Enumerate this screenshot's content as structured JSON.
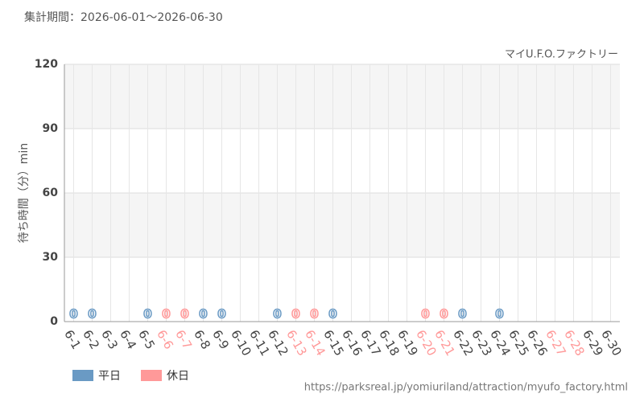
{
  "chart_data": {
    "type": "bar",
    "title": "集計期間：2026-06-01～2026-06-30",
    "subtitle": "マイU.F.O.ファクトリー",
    "y_label": "待ち時間（分）min",
    "source": "https://parksreal.jp/yomiuriland/attraction/myufo_factory.html",
    "categories": [
      "6-1",
      "6-2",
      "6-3",
      "6-4",
      "6-5",
      "6-6",
      "6-7",
      "6-8",
      "6-9",
      "6-10",
      "6-11",
      "6-12",
      "6-13",
      "6-14",
      "6-15",
      "6-16",
      "6-17",
      "6-18",
      "6-19",
      "6-20",
      "6-21",
      "6-22",
      "6-23",
      "6-24",
      "6-25",
      "6-26",
      "6-27",
      "6-28",
      "6-29",
      "6-30"
    ],
    "holidays": [
      false,
      false,
      false,
      false,
      false,
      true,
      true,
      false,
      false,
      false,
      false,
      false,
      true,
      true,
      false,
      false,
      false,
      false,
      false,
      true,
      true,
      false,
      false,
      false,
      false,
      false,
      true,
      true,
      false,
      false
    ],
    "series": [
      {
        "name": "平日",
        "color": "#6a9ac4",
        "values": [
          0,
          0,
          null,
          null,
          0,
          null,
          null,
          0,
          0,
          null,
          null,
          0,
          null,
          null,
          0,
          null,
          null,
          null,
          null,
          null,
          null,
          0,
          null,
          0,
          null,
          null,
          null,
          null,
          null,
          null
        ]
      },
      {
        "name": "休日",
        "color": "#ff9999",
        "values": [
          null,
          null,
          null,
          null,
          null,
          0,
          0,
          null,
          null,
          null,
          null,
          null,
          0,
          0,
          null,
          null,
          null,
          null,
          null,
          0,
          0,
          null,
          null,
          null,
          null,
          null,
          null,
          null,
          null,
          null
        ]
      }
    ],
    "ylim": [
      0,
      120
    ],
    "yticks": [
      0,
      30,
      60,
      90,
      120
    ],
    "grid": true
  }
}
